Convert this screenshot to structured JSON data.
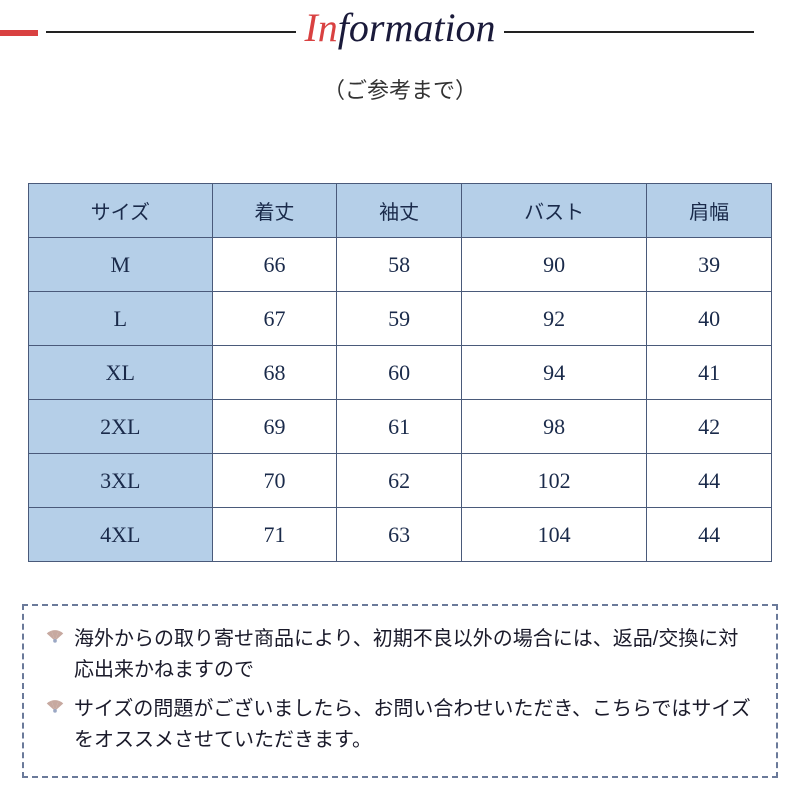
{
  "header": {
    "title_accent": "In",
    "title_rest": "formation",
    "accent_color": "#d94141",
    "subtitle": "（ご参考まで）"
  },
  "table": {
    "header_bg": "#b5cfe8",
    "border_color": "#4a5a7a",
    "columns": [
      "サイズ",
      "着丈",
      "袖丈",
      "バスト",
      "肩幅"
    ],
    "rows": [
      [
        "M",
        "66",
        "58",
        "90",
        "39"
      ],
      [
        "L",
        "67",
        "59",
        "92",
        "40"
      ],
      [
        "XL",
        "68",
        "60",
        "94",
        "41"
      ],
      [
        "2XL",
        "69",
        "61",
        "98",
        "42"
      ],
      [
        "3XL",
        "70",
        "62",
        "102",
        "44"
      ],
      [
        "4XL",
        "71",
        "63",
        "104",
        "44"
      ]
    ]
  },
  "notes": {
    "border_color": "#6b7a9a",
    "fan_colors": {
      "ribs": "#c7a9a0",
      "handle": "#9aa7c4"
    },
    "items": [
      "海外からの取り寄せ商品により、初期不良以外の場合には、返品/交換に対応出来かねますので",
      "サイズの問題がございましたら、お問い合わせいただき、こちらではサイズをオススメさせていただきます。"
    ]
  }
}
